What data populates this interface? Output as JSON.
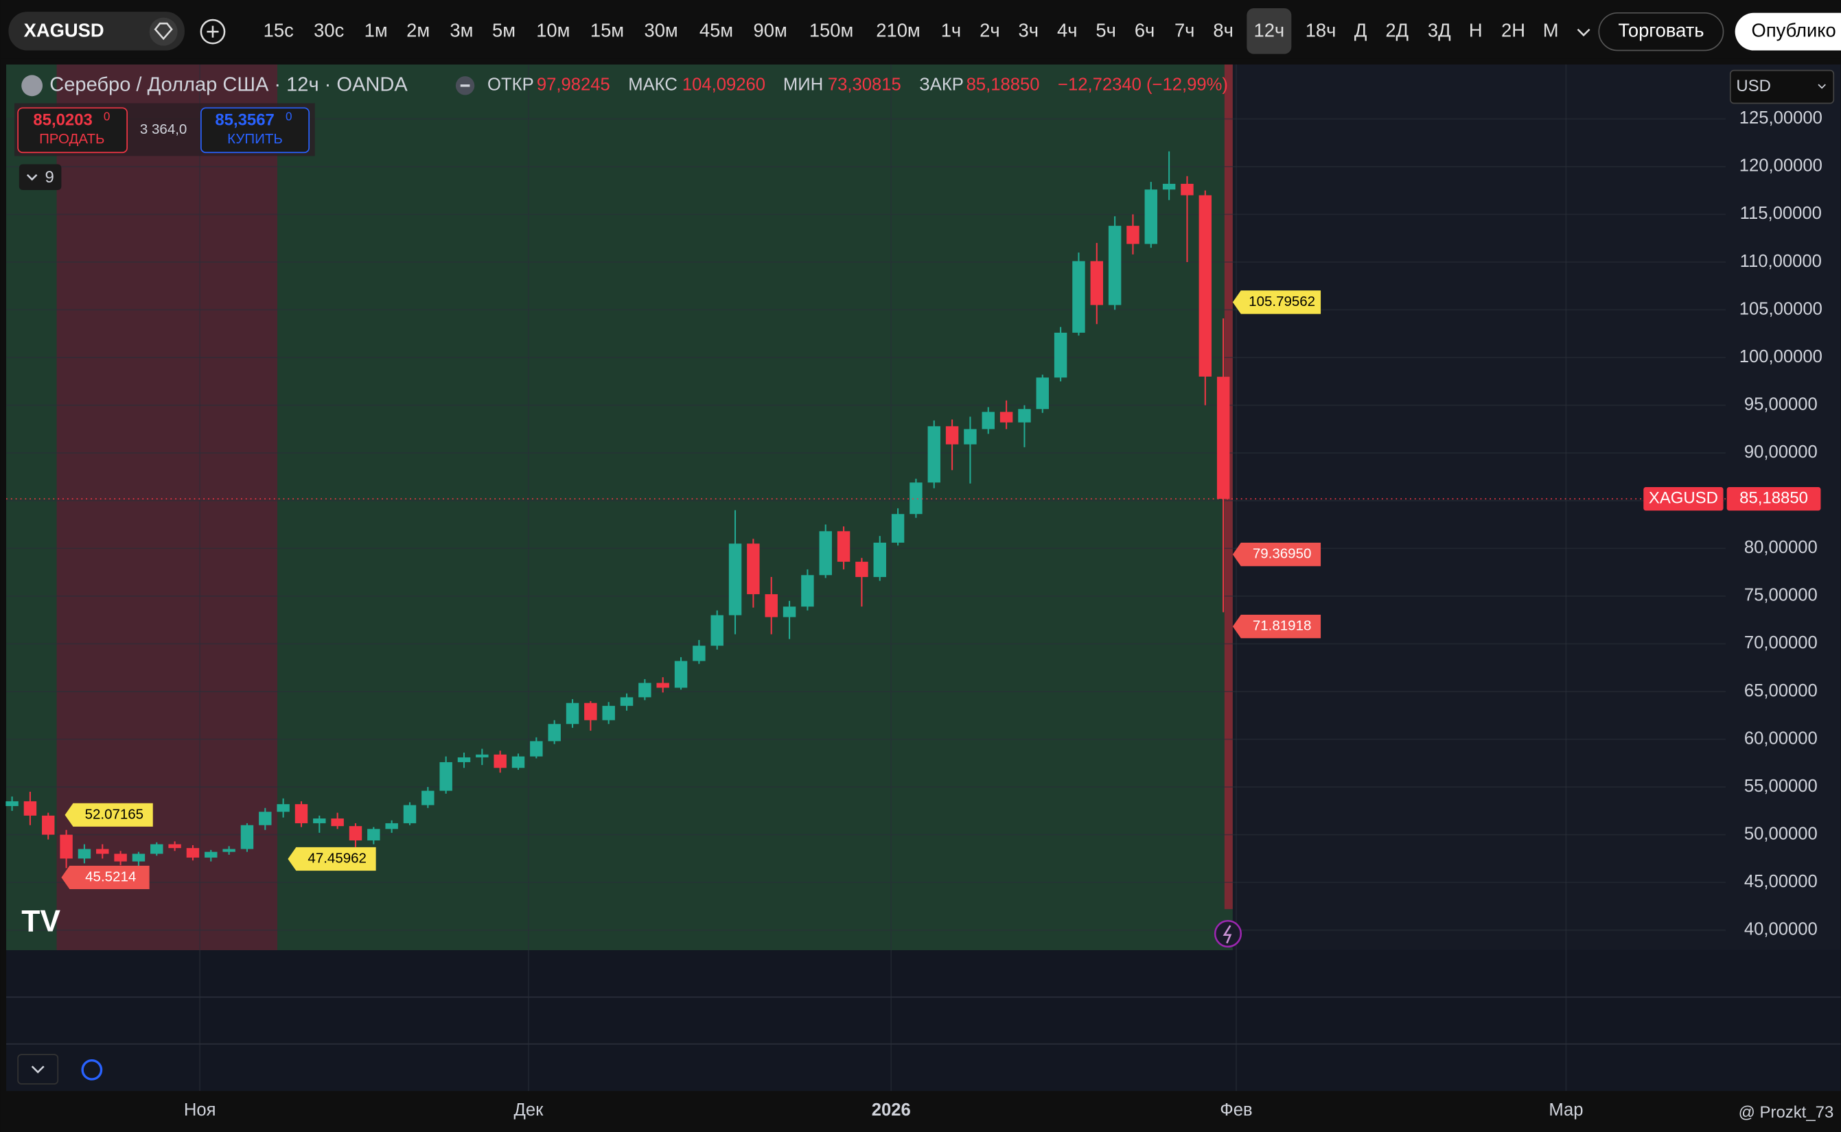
{
  "toolbar": {
    "symbol": "XAGUSD",
    "intervals": [
      "15с",
      "30с",
      "1м",
      "2м",
      "3м",
      "5м",
      "10м",
      "15м",
      "30м",
      "45м",
      "90м",
      "150м",
      "210м",
      "1ч",
      "2ч",
      "3ч",
      "4ч",
      "5ч",
      "6ч",
      "7ч",
      "8ч",
      "12ч",
      "18ч",
      "Д",
      "2Д",
      "3Д",
      "Н",
      "2Н",
      "М"
    ],
    "trade": "Торговать",
    "publish": "Опублико"
  },
  "chart_data": {
    "type": "candlestick",
    "title": "Серебро / Доллар США · 12ч · OANDA",
    "legend": {
      "open_label": "ОТКР",
      "open": "97,98245",
      "high_label": "МАКС",
      "high": "104,09260",
      "low_label": "МИН",
      "low": "73,30815",
      "close_label": "ЗАКР",
      "close": "85,18850",
      "change": "−12,72340 (−12,99%)"
    },
    "trade_panel": {
      "sell_price": "85,0203",
      "sell_digit": "0",
      "sell": "ПРОДАТЬ",
      "spread": "3 364,0",
      "buy_price": "85,3567",
      "buy_digit": "0",
      "buy": "КУПИТЬ"
    },
    "indicators_count": 9,
    "currency": "USD",
    "colors": {
      "up": "#22ab94",
      "down": "#f23645"
    },
    "candles": [
      [
        53.0,
        54.0,
        52.5,
        53.5
      ],
      [
        53.5,
        54.5,
        51.0,
        52.0
      ],
      [
        52.0,
        52.3,
        49.5,
        50.0
      ],
      [
        50.0,
        50.5,
        46.5,
        47.5
      ],
      [
        47.5,
        49.0,
        47.0,
        48.5
      ],
      [
        48.5,
        49.0,
        47.5,
        48.0
      ],
      [
        48.0,
        48.3,
        46.8,
        47.2
      ],
      [
        47.2,
        48.2,
        46.5,
        48.0
      ],
      [
        48.0,
        49.2,
        47.8,
        49.0
      ],
      [
        49.0,
        49.3,
        48.3,
        48.6
      ],
      [
        48.6,
        48.9,
        47.3,
        47.6
      ],
      [
        47.6,
        48.4,
        47.2,
        48.2
      ],
      [
        48.2,
        48.8,
        47.9,
        48.5
      ],
      [
        48.5,
        51.2,
        48.2,
        51.0
      ],
      [
        51.0,
        52.8,
        50.5,
        52.4
      ],
      [
        52.4,
        53.8,
        51.8,
        53.2
      ],
      [
        53.2,
        53.5,
        50.8,
        51.2
      ],
      [
        51.2,
        52.0,
        50.2,
        51.7
      ],
      [
        51.7,
        52.3,
        50.6,
        50.9
      ],
      [
        50.9,
        51.2,
        48.7,
        49.4
      ],
      [
        49.4,
        50.8,
        49.0,
        50.6
      ],
      [
        50.6,
        51.5,
        50.2,
        51.2
      ],
      [
        51.2,
        53.4,
        51.0,
        53.1
      ],
      [
        53.1,
        55.0,
        52.8,
        54.6
      ],
      [
        54.6,
        58.2,
        54.3,
        57.6
      ],
      [
        57.6,
        58.6,
        57.0,
        58.1
      ],
      [
        58.1,
        59.0,
        57.3,
        58.4
      ],
      [
        58.4,
        58.8,
        56.5,
        57.0
      ],
      [
        57.0,
        58.5,
        56.8,
        58.2
      ],
      [
        58.2,
        60.2,
        58.0,
        59.8
      ],
      [
        59.8,
        62.0,
        59.5,
        61.6
      ],
      [
        61.6,
        64.2,
        61.2,
        63.8
      ],
      [
        63.8,
        64.0,
        60.9,
        62.0
      ],
      [
        62.0,
        63.9,
        61.6,
        63.5
      ],
      [
        63.5,
        64.8,
        63.0,
        64.4
      ],
      [
        64.4,
        66.3,
        64.1,
        65.9
      ],
      [
        65.9,
        66.5,
        64.9,
        65.4
      ],
      [
        65.4,
        68.6,
        65.2,
        68.2
      ],
      [
        68.2,
        70.4,
        67.9,
        69.8
      ],
      [
        69.8,
        73.5,
        69.4,
        73.0
      ],
      [
        73.0,
        84.0,
        71.0,
        80.5
      ],
      [
        80.5,
        81.0,
        73.8,
        75.2
      ],
      [
        75.2,
        77.0,
        71.0,
        72.8
      ],
      [
        72.8,
        74.5,
        70.5,
        73.9
      ],
      [
        73.9,
        77.8,
        73.5,
        77.2
      ],
      [
        77.2,
        82.5,
        76.9,
        81.8
      ],
      [
        81.8,
        82.3,
        77.8,
        78.6
      ],
      [
        78.6,
        79.0,
        73.9,
        77.0
      ],
      [
        77.0,
        81.3,
        76.6,
        80.6
      ],
      [
        80.6,
        84.2,
        80.3,
        83.6
      ],
      [
        83.6,
        87.3,
        83.2,
        86.9
      ],
      [
        86.9,
        93.4,
        86.3,
        92.8
      ],
      [
        92.8,
        93.5,
        88.2,
        90.9
      ],
      [
        90.9,
        93.8,
        86.8,
        92.5
      ],
      [
        92.5,
        94.8,
        92.0,
        94.3
      ],
      [
        94.3,
        95.5,
        92.5,
        93.2
      ],
      [
        93.2,
        95.0,
        90.6,
        94.6
      ],
      [
        94.6,
        98.2,
        94.2,
        97.9
      ],
      [
        97.9,
        103.2,
        97.5,
        102.6
      ],
      [
        102.6,
        111.0,
        102.3,
        110.1
      ],
      [
        110.1,
        112.0,
        103.5,
        105.5
      ],
      [
        105.5,
        114.8,
        105.0,
        113.8
      ],
      [
        113.8,
        115.0,
        110.8,
        111.9
      ],
      [
        111.9,
        118.4,
        111.5,
        117.6
      ],
      [
        117.6,
        121.6,
        116.5,
        118.2
      ],
      [
        118.2,
        119.0,
        110.0,
        117.0
      ],
      [
        117.0,
        117.5,
        95.0,
        98.0
      ],
      [
        97.98245,
        104.0926,
        73.30815,
        85.1885
      ]
    ],
    "ylim": [
      37.9,
      130.7
    ],
    "yticks": [
      {
        "value": 40,
        "label": "40,00000"
      },
      {
        "value": 45,
        "label": "45,00000"
      },
      {
        "value": 50,
        "label": "50,00000"
      },
      {
        "value": 55,
        "label": "55,00000"
      },
      {
        "value": 60,
        "label": "60,00000"
      },
      {
        "value": 65,
        "label": "65,00000"
      },
      {
        "value": 70,
        "label": "70,00000"
      },
      {
        "value": 75,
        "label": "75,00000"
      },
      {
        "value": 80,
        "label": "80,00000"
      },
      {
        "value": 85,
        "label": "85,00000"
      },
      {
        "value": 90,
        "label": "90,00000"
      },
      {
        "value": 95,
        "label": "95,00000"
      },
      {
        "value": 100,
        "label": "100,00000"
      },
      {
        "value": 105,
        "label": "105,00000"
      },
      {
        "value": 110,
        "label": "110,00000"
      },
      {
        "value": 115,
        "label": "115,00000"
      },
      {
        "value": 120,
        "label": "120,00000"
      },
      {
        "value": 125,
        "label": "125,00000"
      }
    ],
    "price_labels": [
      {
        "value": 105.79562,
        "label": "105.79562",
        "color": "#f7e34b"
      },
      {
        "value": 79.3695,
        "label": "79.36950",
        "color": "#f05350"
      },
      {
        "value": 71.81918,
        "label": "71.81918",
        "color": "#f05350"
      },
      {
        "value": 52.07165,
        "label": "52.07165",
        "color": "#f7e34b"
      },
      {
        "value": 47.45962,
        "label": "47.45962",
        "color": "#f7e34b"
      },
      {
        "value": 45.5214,
        "label": "45.5214",
        "color": "#f05350"
      }
    ],
    "last_price": {
      "symbol": "XAGUSD",
      "label": "85,18850"
    },
    "grid": true,
    "time_labels": [
      "Ноя",
      "Дек",
      "2026",
      "Фев",
      "Мар"
    ],
    "watermark": "@ Prozkt_73"
  }
}
